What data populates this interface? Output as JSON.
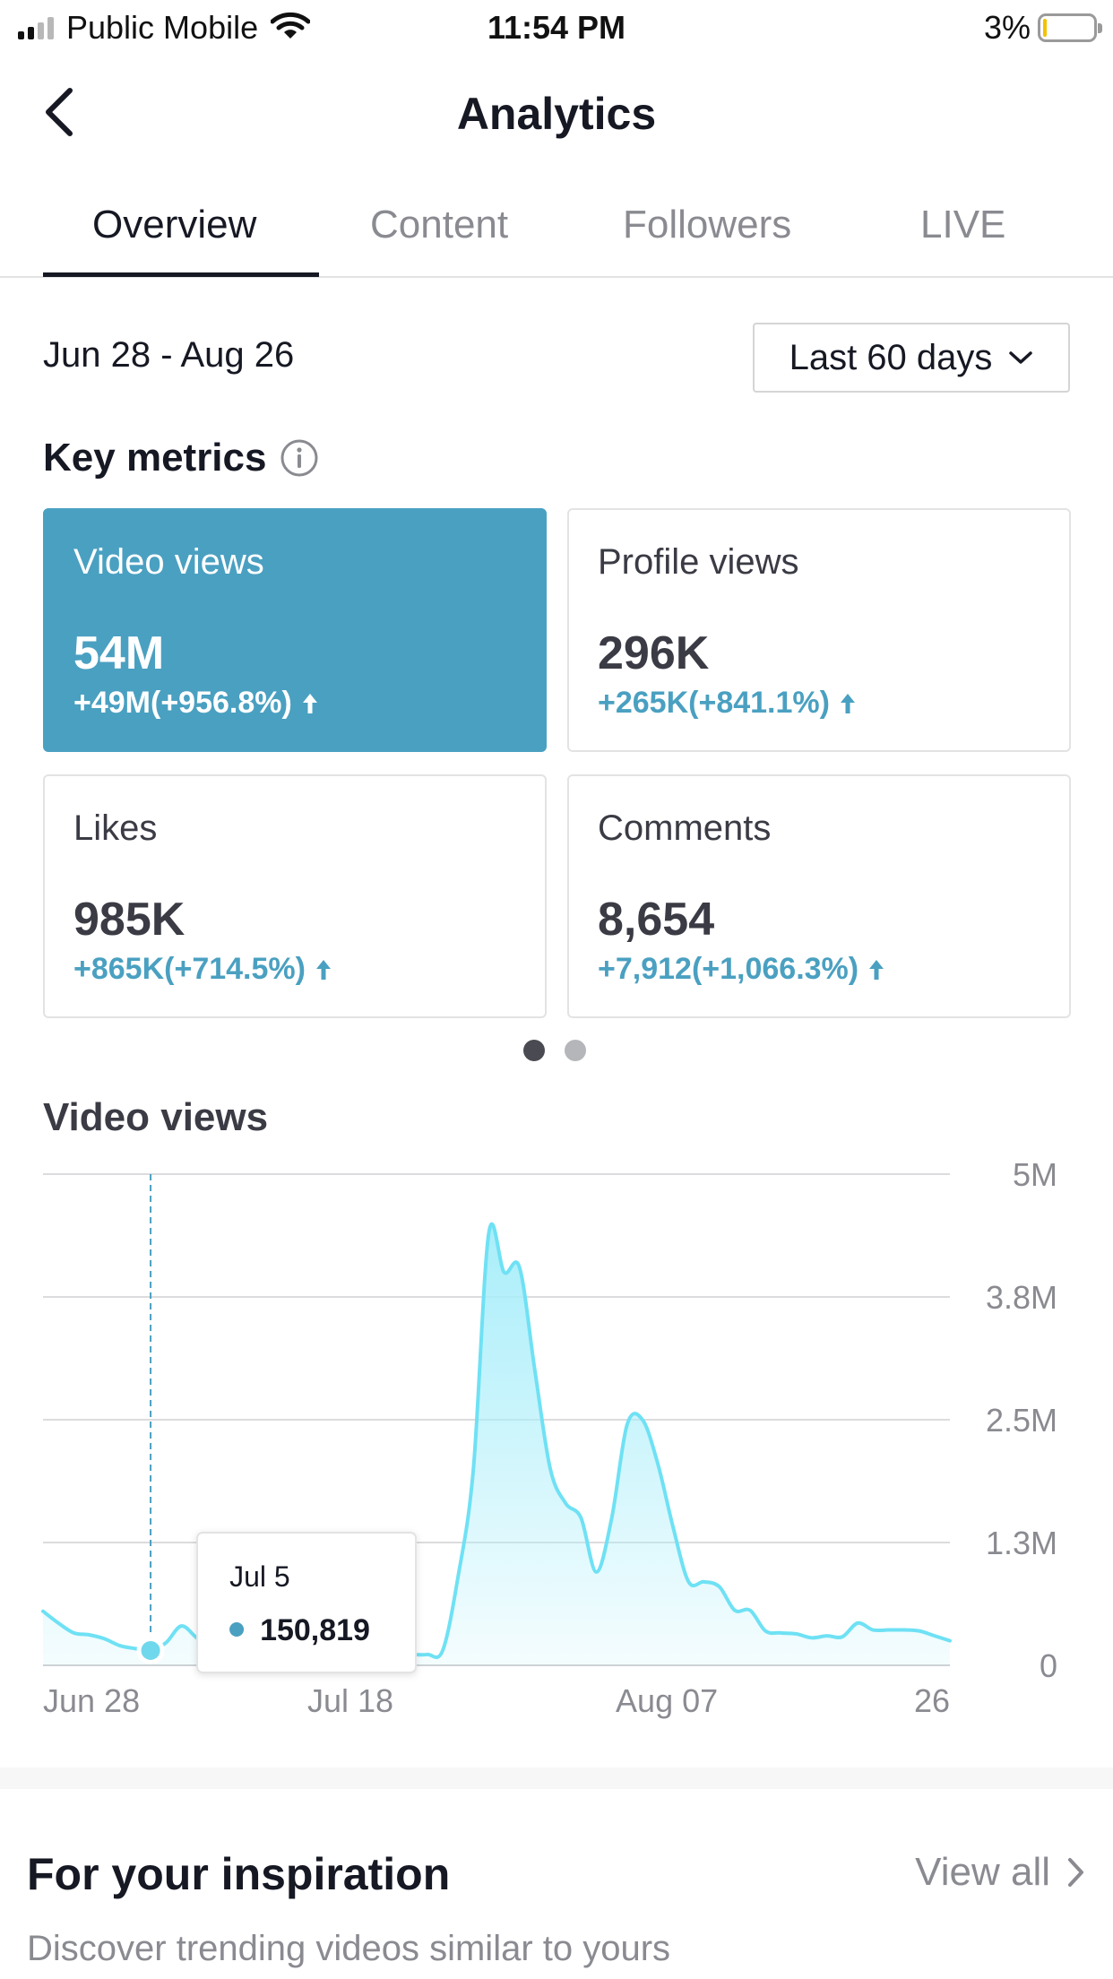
{
  "status_bar": {
    "carrier": "Public Mobile",
    "time": "11:54 PM",
    "battery": "3%"
  },
  "header": {
    "title": "Analytics"
  },
  "tabs": [
    {
      "label": "Overview",
      "active": true
    },
    {
      "label": "Content",
      "active": false
    },
    {
      "label": "Followers",
      "active": false
    },
    {
      "label": "LIVE",
      "active": false
    }
  ],
  "date_range": "Jun 28 - Aug 26",
  "range_select": {
    "value": "Last 60 days"
  },
  "key_metrics": {
    "title": "Key metrics",
    "cards": [
      {
        "label": "Video views",
        "value": "54M",
        "change": "+49M(+956.8%)",
        "active": true
      },
      {
        "label": "Profile views",
        "value": "296K",
        "change": "+265K(+841.1%)",
        "active": false
      },
      {
        "label": "Likes",
        "value": "985K",
        "change": "+865K(+714.5%)",
        "active": false
      },
      {
        "label": "Comments",
        "value": "8,654",
        "change": "+7,912(+1,066.3%)",
        "active": false
      }
    ],
    "pages": 2,
    "current_page": 1
  },
  "colors": {
    "accent": "#4aa0c1",
    "chart_line": "#6fe1f4",
    "chart_fill": "#a9eefa",
    "text": "#161823",
    "muted": "#8a8b91"
  },
  "chart_data": {
    "type": "area",
    "title": "Video views",
    "x": [
      "Jun 28",
      "Jun 29",
      "Jun 30",
      "Jul 1",
      "Jul 2",
      "Jul 3",
      "Jul 4",
      "Jul 5",
      "Jul 6",
      "Jul 7",
      "Jul 8",
      "Jul 9",
      "Jul 10",
      "Jul 11",
      "Jul 12",
      "Jul 13",
      "Jul 14",
      "Jul 15",
      "Jul 16",
      "Jul 17",
      "Jul 18",
      "Jul 19",
      "Jul 20",
      "Jul 21",
      "Jul 22",
      "Jul 23",
      "Jul 24",
      "Jul 25",
      "Jul 26",
      "Jul 27",
      "Jul 28",
      "Jul 29",
      "Jul 30",
      "Jul 31",
      "Aug 1",
      "Aug 2",
      "Aug 3",
      "Aug 4",
      "Aug 5",
      "Aug 6",
      "Aug 7",
      "Aug 8",
      "Aug 9",
      "Aug 10",
      "Aug 11",
      "Aug 12",
      "Aug 13",
      "Aug 14",
      "Aug 15",
      "Aug 16",
      "Aug 17",
      "Aug 18",
      "Aug 19",
      "Aug 20",
      "Aug 21",
      "Aug 22",
      "Aug 23",
      "Aug 24",
      "Aug 25",
      "Aug 26"
    ],
    "values": [
      550000,
      430000,
      330000,
      310000,
      270000,
      200000,
      170000,
      150819,
      230000,
      400000,
      280000,
      180000,
      140000,
      120000,
      110000,
      110000,
      110000,
      110000,
      110000,
      110000,
      110000,
      110000,
      110000,
      110000,
      110000,
      110000,
      150000,
      900000,
      2000000,
      4400000,
      4000000,
      4050000,
      3000000,
      2000000,
      1650000,
      1500000,
      950000,
      1500000,
      2450000,
      2500000,
      2050000,
      1400000,
      850000,
      850000,
      800000,
      560000,
      560000,
      350000,
      330000,
      320000,
      280000,
      300000,
      290000,
      430000,
      360000,
      360000,
      360000,
      350000,
      300000,
      250000
    ],
    "xlim": [
      "Jun 28",
      "Aug 26"
    ],
    "ylim": [
      0,
      5000000
    ],
    "y_ticks": [
      "0",
      "1.3M",
      "2.5M",
      "3.8M",
      "5M"
    ],
    "x_ticks": [
      "Jun 28",
      "Jul 18",
      "Aug 07",
      "26"
    ],
    "grid": true,
    "tooltip": {
      "date": "Jul 5",
      "value": "150,819",
      "index": 7
    }
  },
  "inspiration": {
    "title": "For your inspiration",
    "view_all": "View all",
    "subtitle": "Discover trending videos similar to yours"
  }
}
